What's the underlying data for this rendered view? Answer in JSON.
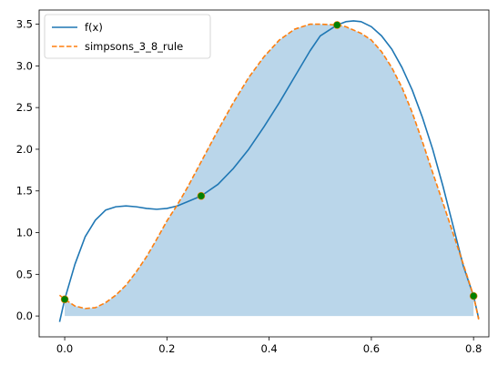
{
  "chart_data": {
    "type": "line",
    "title": "",
    "xlabel": "",
    "ylabel": "",
    "xlim": [
      -0.05,
      0.83
    ],
    "ylim": [
      -0.25,
      3.67
    ],
    "x_ticks": [
      0.0,
      0.2,
      0.4,
      0.6,
      0.8
    ],
    "x_tick_labels": [
      "0.0",
      "0.2",
      "0.4",
      "0.6",
      "0.8"
    ],
    "y_ticks": [
      0.0,
      0.5,
      1.0,
      1.5,
      2.0,
      2.5,
      3.0,
      3.5
    ],
    "y_tick_labels": [
      "0.0",
      "0.5",
      "1.0",
      "1.5",
      "2.0",
      "2.5",
      "3.0",
      "3.5"
    ],
    "grid": false,
    "legend_position": "top-left",
    "series": [
      {
        "name": "f(x)",
        "style": "solid",
        "color": "#1f77b4",
        "x": [
          -0.01,
          0.0,
          0.02,
          0.04,
          0.06,
          0.08,
          0.1,
          0.12,
          0.14,
          0.16,
          0.18,
          0.2,
          0.22,
          0.24,
          0.267,
          0.3,
          0.33,
          0.36,
          0.39,
          0.42,
          0.45,
          0.48,
          0.5,
          0.533,
          0.55,
          0.565,
          0.58,
          0.6,
          0.62,
          0.64,
          0.66,
          0.68,
          0.7,
          0.72,
          0.74,
          0.76,
          0.78,
          0.8,
          0.81
        ],
        "y": [
          -0.07,
          0.2,
          0.62,
          0.95,
          1.15,
          1.27,
          1.31,
          1.32,
          1.31,
          1.29,
          1.28,
          1.29,
          1.32,
          1.37,
          1.44,
          1.58,
          1.77,
          2.0,
          2.27,
          2.56,
          2.87,
          3.18,
          3.36,
          3.49,
          3.53,
          3.54,
          3.53,
          3.47,
          3.36,
          3.2,
          2.98,
          2.71,
          2.38,
          2.0,
          1.56,
          1.08,
          0.6,
          0.24,
          -0.03
        ]
      },
      {
        "name": "simpsons_3_8_rule",
        "style": "dashed",
        "color": "#ff7f0e",
        "x": [
          -0.01,
          0.0,
          0.02,
          0.04,
          0.06,
          0.08,
          0.1,
          0.12,
          0.14,
          0.16,
          0.18,
          0.2,
          0.22,
          0.24,
          0.267,
          0.3,
          0.33,
          0.36,
          0.39,
          0.42,
          0.45,
          0.48,
          0.5,
          0.533,
          0.55,
          0.58,
          0.6,
          0.62,
          0.64,
          0.66,
          0.68,
          0.7,
          0.72,
          0.74,
          0.76,
          0.78,
          0.8,
          0.81
        ],
        "y": [
          0.25,
          0.2,
          0.12,
          0.09,
          0.1,
          0.16,
          0.25,
          0.37,
          0.53,
          0.71,
          0.92,
          1.14,
          1.33,
          1.54,
          1.85,
          2.23,
          2.56,
          2.86,
          3.11,
          3.31,
          3.44,
          3.5,
          3.5,
          3.49,
          3.47,
          3.39,
          3.31,
          3.17,
          2.98,
          2.74,
          2.44,
          2.09,
          1.72,
          1.36,
          0.99,
          0.62,
          0.24,
          -0.04
        ]
      }
    ],
    "sample_points": {
      "color": "#008000",
      "x": [
        0.0,
        0.267,
        0.533,
        0.8
      ],
      "y": [
        0.2,
        1.44,
        3.49,
        0.24
      ]
    },
    "fill": {
      "color": "#bad6ea",
      "x_range": [
        0.0,
        0.8
      ],
      "under": "simpsons_3_8_rule"
    }
  }
}
